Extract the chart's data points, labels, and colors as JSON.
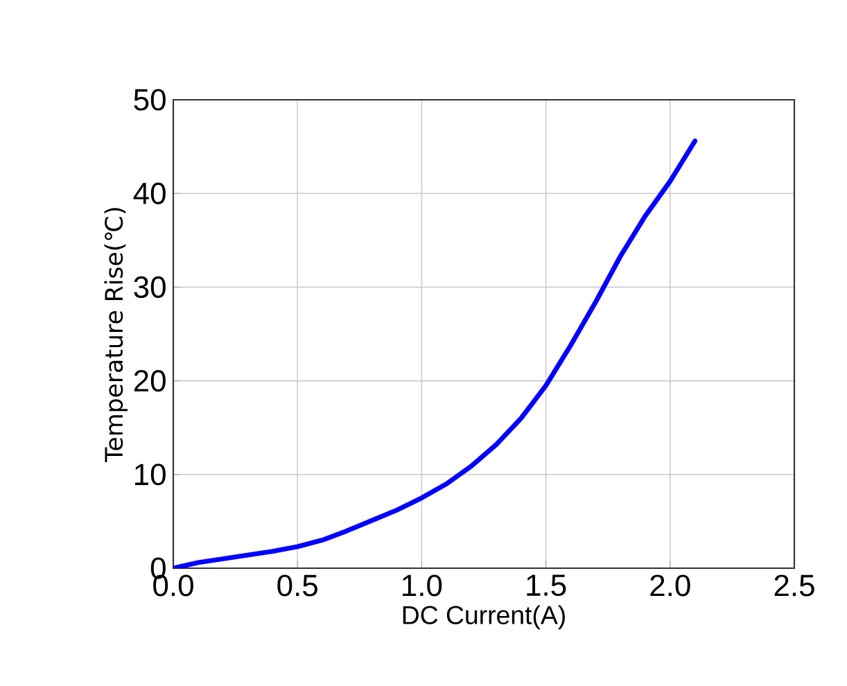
{
  "chart_data": {
    "type": "line",
    "xlabel": "DC Current(A)",
    "ylabel": "Temperature Rise(℃)",
    "x": [
      0,
      0.1,
      0.2,
      0.3,
      0.4,
      0.5,
      0.6,
      0.7,
      0.8,
      0.9,
      1.0,
      1.1,
      1.2,
      1.3,
      1.4,
      1.5,
      1.6,
      1.7,
      1.8,
      1.9,
      2.0,
      2.1
    ],
    "series": [
      {
        "color": "#0000ff",
        "values": [
          0,
          0.6,
          1.0,
          1.4,
          1.8,
          2.3,
          3.0,
          4.0,
          5.1,
          6.2,
          7.5,
          9.0,
          10.9,
          13.2,
          16.0,
          19.5,
          23.8,
          28.4,
          33.3,
          37.6,
          41.3,
          45.6
        ]
      }
    ],
    "xlim": [
      0,
      2.5
    ],
    "ylim": [
      0,
      50
    ],
    "xticks": [
      {
        "value": 0,
        "label": "0.0"
      },
      {
        "value": 0.5,
        "label": "0.5"
      },
      {
        "value": 1,
        "label": "1.0"
      },
      {
        "value": 1.5,
        "label": "1.5"
      },
      {
        "value": 2,
        "label": "2.0"
      },
      {
        "value": 2.5,
        "label": "2.5"
      }
    ],
    "yticks": [
      0,
      10,
      20,
      30,
      40,
      50
    ],
    "grid": true,
    "marker": "none",
    "line_style": "solid"
  }
}
